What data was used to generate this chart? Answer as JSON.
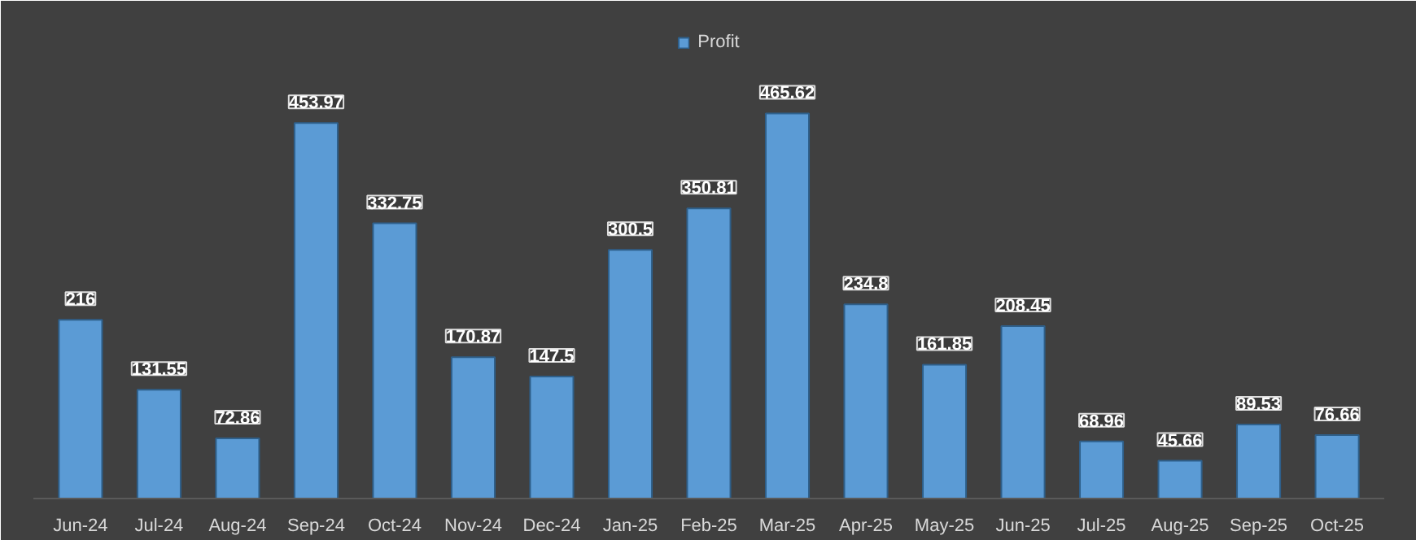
{
  "chart_data": {
    "type": "bar",
    "categories": [
      "Jun-24",
      "Jul-24",
      "Aug-24",
      "Sep-24",
      "Oct-24",
      "Nov-24",
      "Dec-24",
      "Jan-25",
      "Feb-25",
      "Mar-25",
      "Apr-25",
      "May-25",
      "Jun-25",
      "Jul-25",
      "Aug-25",
      "Sep-25",
      "Oct-25"
    ],
    "series": [
      {
        "name": "Profit",
        "color": "#5b9bd5",
        "values": [
          216,
          131.55,
          72.86,
          453.97,
          332.75,
          170.87,
          147.5,
          300.5,
          350.81,
          465.62,
          234.8,
          161.85,
          208.45,
          68.96,
          45.66,
          89.53,
          76.66
        ]
      }
    ],
    "data_labels": true,
    "legend": "top",
    "grid": false
  }
}
